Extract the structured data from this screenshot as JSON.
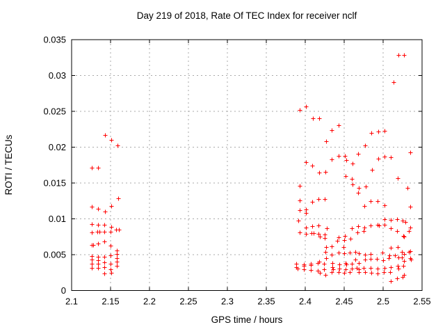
{
  "chart_data": {
    "type": "scatter",
    "title": "Day 219 of 2018, Rate Of TEC Index for receiver nclf",
    "xlabel": "GPS time / hours",
    "ylabel": "ROTI / TECUs",
    "xlim": [
      2.1,
      2.55
    ],
    "ylim": [
      0,
      0.035
    ],
    "xticks": [
      2.1,
      2.15,
      2.2,
      2.25,
      2.3,
      2.35,
      2.4,
      2.45,
      2.5,
      2.55
    ],
    "xtick_labels": [
      "2.1",
      "2.15",
      "2.2",
      "2.25",
      "2.3",
      "2.35",
      "2.4",
      "2.45",
      "2.5",
      "2.55"
    ],
    "yticks": [
      0,
      0.005,
      0.01,
      0.015,
      0.02,
      0.025,
      0.03,
      0.035
    ],
    "ytick_labels": [
      "0",
      "0.005",
      "0.01",
      "0.015",
      "0.02",
      "0.025",
      "0.03",
      "0.035"
    ],
    "grid": true,
    "legend": "none",
    "marker": "plus",
    "marker_color": "#ff0000",
    "grid_color": "#a8a8a8",
    "border_color": "#000000",
    "points": [
      [
        2.143,
        0.0217
      ],
      [
        2.151,
        0.021
      ],
      [
        2.159,
        0.0202
      ],
      [
        2.126,
        0.0171
      ],
      [
        2.134,
        0.0171
      ],
      [
        2.16,
        0.0129
      ],
      [
        2.126,
        0.0117
      ],
      [
        2.134,
        0.0114
      ],
      [
        2.143,
        0.011
      ],
      [
        2.151,
        0.0118
      ],
      [
        2.126,
        0.0093
      ],
      [
        2.134,
        0.0092
      ],
      [
        2.142,
        0.0092
      ],
      [
        2.151,
        0.0089
      ],
      [
        2.126,
        0.0081
      ],
      [
        2.133,
        0.0082
      ],
      [
        2.1355,
        0.0082
      ],
      [
        2.142,
        0.0082
      ],
      [
        2.15,
        0.0082
      ],
      [
        2.1575,
        0.0085
      ],
      [
        2.1605,
        0.0085
      ],
      [
        2.126,
        0.0064
      ],
      [
        2.1275,
        0.0064
      ],
      [
        2.134,
        0.0066
      ],
      [
        2.142,
        0.0068
      ],
      [
        2.15,
        0.0063
      ],
      [
        2.158,
        0.0056
      ],
      [
        2.158,
        0.0051
      ],
      [
        2.126,
        0.0048
      ],
      [
        2.126,
        0.0043
      ],
      [
        2.134,
        0.0047
      ],
      [
        2.134,
        0.0042
      ],
      [
        2.142,
        0.0047
      ],
      [
        2.15,
        0.0049
      ],
      [
        2.158,
        0.0045
      ],
      [
        2.126,
        0.0037
      ],
      [
        2.126,
        0.0032
      ],
      [
        2.134,
        0.0037
      ],
      [
        2.134,
        0.0032
      ],
      [
        2.142,
        0.0039
      ],
      [
        2.142,
        0.0033
      ],
      [
        2.15,
        0.0037
      ],
      [
        2.15,
        0.003
      ],
      [
        2.158,
        0.004
      ],
      [
        2.158,
        0.0034
      ],
      [
        2.142,
        0.0024
      ],
      [
        2.151,
        0.0025
      ],
      [
        2.52,
        0.0329
      ],
      [
        2.527,
        0.0329
      ],
      [
        2.513,
        0.0291
      ],
      [
        2.393,
        0.0252
      ],
      [
        2.401,
        0.0257
      ],
      [
        2.41,
        0.024
      ],
      [
        2.418,
        0.024
      ],
      [
        2.443,
        0.0231
      ],
      [
        2.434,
        0.0224
      ],
      [
        2.427,
        0.0208
      ],
      [
        2.485,
        0.022
      ],
      [
        2.494,
        0.0222
      ],
      [
        2.502,
        0.0223
      ],
      [
        2.477,
        0.0202
      ],
      [
        2.468,
        0.0191
      ],
      [
        2.535,
        0.0193
      ],
      [
        2.401,
        0.0179
      ],
      [
        2.409,
        0.0174
      ],
      [
        2.418,
        0.0165
      ],
      [
        2.426,
        0.0166
      ],
      [
        2.434,
        0.0183
      ],
      [
        2.443,
        0.0188
      ],
      [
        2.451,
        0.0188
      ],
      [
        2.453,
        0.0182
      ],
      [
        2.461,
        0.0177
      ],
      [
        2.486,
        0.0168
      ],
      [
        2.494,
        0.0184
      ],
      [
        2.502,
        0.0187
      ],
      [
        2.51,
        0.0186
      ],
      [
        2.452,
        0.016
      ],
      [
        2.46,
        0.0156
      ],
      [
        2.461,
        0.0148
      ],
      [
        2.469,
        0.0143
      ],
      [
        2.478,
        0.0145
      ],
      [
        2.393,
        0.0146
      ],
      [
        2.519,
        0.0157
      ],
      [
        2.531,
        0.0143
      ],
      [
        2.468,
        0.0136
      ],
      [
        2.393,
        0.0126
      ],
      [
        2.409,
        0.0124
      ],
      [
        2.417,
        0.0128
      ],
      [
        2.425,
        0.0128
      ],
      [
        2.476,
        0.0118
      ],
      [
        2.484,
        0.0125
      ],
      [
        2.493,
        0.0125
      ],
      [
        2.502,
        0.0119
      ],
      [
        2.535,
        0.0117
      ],
      [
        2.393,
        0.0112
      ],
      [
        2.401,
        0.0113
      ],
      [
        2.401,
        0.0108
      ],
      [
        2.391,
        0.0098
      ],
      [
        2.502,
        0.01
      ],
      [
        2.51,
        0.0099
      ],
      [
        2.518,
        0.01
      ],
      [
        2.525,
        0.0098
      ],
      [
        2.529,
        0.0096
      ],
      [
        2.401,
        0.0088
      ],
      [
        2.409,
        0.009
      ],
      [
        2.417,
        0.0091
      ],
      [
        2.428,
        0.0087
      ],
      [
        2.46,
        0.0087
      ],
      [
        2.468,
        0.009
      ],
      [
        2.476,
        0.0088
      ],
      [
        2.484,
        0.0091
      ],
      [
        2.4925,
        0.0092
      ],
      [
        2.4945,
        0.0091
      ],
      [
        2.502,
        0.0092
      ],
      [
        2.51,
        0.0087
      ],
      [
        2.518,
        0.0083
      ],
      [
        2.535,
        0.0088
      ],
      [
        2.533,
        0.0083
      ],
      [
        2.393,
        0.0081
      ],
      [
        2.401,
        0.0079
      ],
      [
        2.408,
        0.008
      ],
      [
        2.411,
        0.008
      ],
      [
        2.417,
        0.0079
      ],
      [
        2.425,
        0.0078
      ],
      [
        2.467,
        0.0081
      ],
      [
        2.475,
        0.0083
      ],
      [
        2.526,
        0.0076
      ],
      [
        2.419,
        0.0075
      ],
      [
        2.425,
        0.0073
      ],
      [
        2.443,
        0.0074
      ],
      [
        2.451,
        0.0076
      ],
      [
        2.458,
        0.0072
      ],
      [
        2.527,
        0.0075
      ],
      [
        2.441,
        0.0069
      ],
      [
        2.45,
        0.007
      ],
      [
        2.427,
        0.0061
      ],
      [
        2.434,
        0.0062
      ],
      [
        2.449,
        0.0061
      ],
      [
        2.51,
        0.006
      ],
      [
        2.519,
        0.0061
      ],
      [
        2.426,
        0.0054
      ],
      [
        2.434,
        0.005
      ],
      [
        2.443,
        0.0053
      ],
      [
        2.45,
        0.0052
      ],
      [
        2.457,
        0.0053
      ],
      [
        2.464,
        0.0054
      ],
      [
        2.469,
        0.0052
      ],
      [
        2.477,
        0.005
      ],
      [
        2.484,
        0.0051
      ],
      [
        2.499,
        0.0053
      ],
      [
        2.508,
        0.0049
      ],
      [
        2.515,
        0.0049
      ],
      [
        2.524,
        0.0054
      ],
      [
        2.527,
        0.0051
      ],
      [
        2.533,
        0.0054
      ],
      [
        2.535,
        0.0055
      ],
      [
        2.464,
        0.0043
      ],
      [
        2.477,
        0.0043
      ],
      [
        2.484,
        0.0044
      ],
      [
        2.492,
        0.0044
      ],
      [
        2.5,
        0.0042
      ],
      [
        2.507,
        0.0045
      ],
      [
        2.52,
        0.0046
      ],
      [
        2.524,
        0.0046
      ],
      [
        2.527,
        0.0041
      ],
      [
        2.535,
        0.0045
      ],
      [
        2.5355,
        0.0043
      ],
      [
        2.418,
        0.004
      ],
      [
        2.427,
        0.0045
      ],
      [
        2.388,
        0.0037
      ],
      [
        2.388,
        0.0033
      ],
      [
        2.398,
        0.0036
      ],
      [
        2.3985,
        0.0034
      ],
      [
        2.407,
        0.0037
      ],
      [
        2.407,
        0.0035
      ],
      [
        2.416,
        0.0038
      ],
      [
        2.424,
        0.0037
      ],
      [
        2.435,
        0.0038
      ],
      [
        2.444,
        0.0036
      ],
      [
        2.452,
        0.0038
      ],
      [
        2.4525,
        0.0036
      ],
      [
        2.46,
        0.0037
      ],
      [
        2.469,
        0.0038
      ],
      [
        2.39,
        0.0031
      ],
      [
        2.398,
        0.003
      ],
      [
        2.407,
        0.0029
      ],
      [
        2.416,
        0.0028
      ],
      [
        2.424,
        0.003
      ],
      [
        2.435,
        0.0033
      ],
      [
        2.4355,
        0.003
      ],
      [
        2.444,
        0.0031
      ],
      [
        2.452,
        0.003
      ],
      [
        2.46,
        0.0031
      ],
      [
        2.466,
        0.0032
      ],
      [
        2.469,
        0.003
      ],
      [
        2.475,
        0.0032
      ],
      [
        2.484,
        0.0032
      ],
      [
        2.493,
        0.0031
      ],
      [
        2.502,
        0.0032
      ],
      [
        2.51,
        0.0033
      ],
      [
        2.519,
        0.0034
      ],
      [
        2.5195,
        0.0031
      ],
      [
        2.526,
        0.0034
      ],
      [
        2.419,
        0.0025
      ],
      [
        2.426,
        0.0022
      ],
      [
        2.434,
        0.0026
      ],
      [
        2.443,
        0.0026
      ],
      [
        2.45,
        0.0025
      ],
      [
        2.457,
        0.0026
      ],
      [
        2.469,
        0.0026
      ],
      [
        2.477,
        0.0026
      ],
      [
        2.485,
        0.0025
      ],
      [
        2.493,
        0.0024
      ],
      [
        2.501,
        0.0026
      ],
      [
        2.509,
        0.0026
      ],
      [
        2.527,
        0.0022
      ],
      [
        2.51,
        0.0013
      ],
      [
        2.518,
        0.0017
      ],
      [
        2.525,
        0.0019
      ]
    ]
  }
}
